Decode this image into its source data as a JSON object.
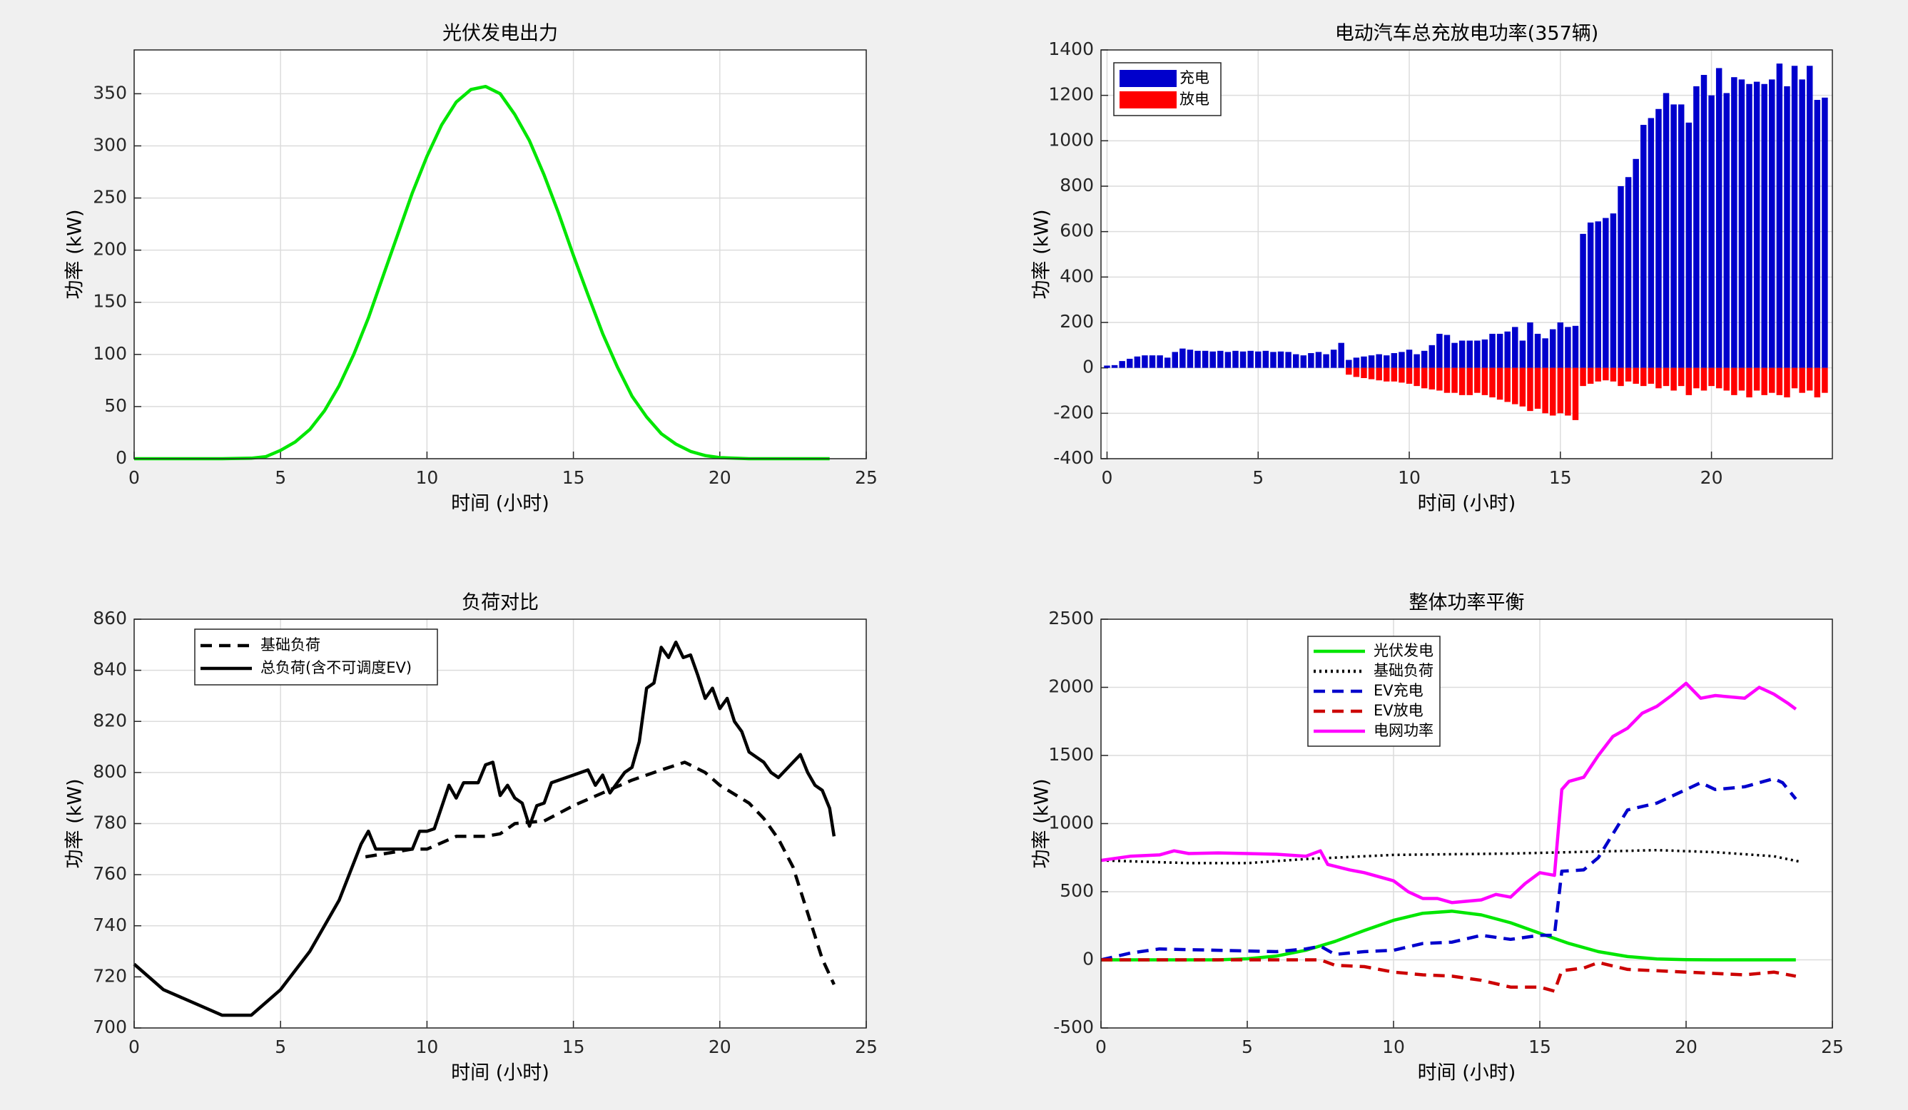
{
  "chart_data": [
    {
      "type": "line",
      "title": "光伏发电出力",
      "xlabel": "时间 (小时)",
      "ylabel": "功率 (kW)",
      "xlim": [
        0,
        25
      ],
      "xticks": [
        0,
        5,
        10,
        15,
        20,
        25
      ],
      "ylim": [
        0,
        392
      ],
      "yticks": [
        0,
        50,
        100,
        150,
        200,
        250,
        300,
        350
      ],
      "grid": true,
      "series": [
        {
          "color": "#00e600",
          "linestyle": "-",
          "x": [
            0,
            1,
            2,
            3,
            4,
            4.5,
            5,
            5.5,
            6,
            6.5,
            7,
            7.5,
            8,
            8.5,
            9,
            9.5,
            10,
            10.5,
            11,
            11.5,
            12,
            12.5,
            13,
            13.5,
            14,
            14.5,
            15,
            15.5,
            16,
            16.5,
            17,
            17.5,
            18,
            18.5,
            19,
            19.5,
            20,
            21,
            22,
            23,
            23.75
          ],
          "values": [
            0,
            0,
            0,
            0,
            0.5,
            2,
            8,
            16,
            28,
            46,
            70,
            100,
            135,
            175,
            215,
            255,
            290,
            320,
            342,
            354,
            357,
            350,
            330,
            305,
            272,
            235,
            195,
            157,
            120,
            88,
            60,
            40,
            24,
            14,
            7,
            3,
            1,
            0,
            0,
            0,
            0
          ]
        }
      ]
    },
    {
      "type": "bar",
      "title": "电动汽车总充放电功率(357辆)",
      "xlabel": "时间 (小时)",
      "ylabel": "功率 (kW)",
      "xlim": [
        -0.2,
        24
      ],
      "xticks": [
        0,
        5,
        10,
        15,
        20
      ],
      "ylim": [
        -400,
        1400
      ],
      "yticks": [
        -400,
        -200,
        0,
        200,
        400,
        600,
        800,
        1000,
        1200,
        1400
      ],
      "grid": true,
      "legend": "upper left",
      "x": [
        0,
        0.25,
        0.5,
        0.75,
        1,
        1.25,
        1.5,
        1.75,
        2,
        2.25,
        2.5,
        2.75,
        3,
        3.25,
        3.5,
        3.75,
        4,
        4.25,
        4.5,
        4.75,
        5,
        5.25,
        5.5,
        5.75,
        6,
        6.25,
        6.5,
        6.75,
        7,
        7.25,
        7.5,
        7.75,
        8,
        8.25,
        8.5,
        8.75,
        9,
        9.25,
        9.5,
        9.75,
        10,
        10.25,
        10.5,
        10.75,
        11,
        11.25,
        11.5,
        11.75,
        12,
        12.25,
        12.5,
        12.75,
        13,
        13.25,
        13.5,
        13.75,
        14,
        14.25,
        14.5,
        14.75,
        15,
        15.25,
        15.5,
        15.75,
        16,
        16.25,
        16.5,
        16.75,
        17,
        17.25,
        17.5,
        17.75,
        18,
        18.25,
        18.5,
        18.75,
        19,
        19.25,
        19.5,
        19.75,
        20,
        20.25,
        20.5,
        20.75,
        21,
        21.25,
        21.5,
        21.75,
        22,
        22.25,
        22.5,
        22.75,
        23,
        23.25,
        23.5,
        23.75
      ],
      "series": [
        {
          "name": "充电",
          "color": "#0000cc",
          "values": [
            10,
            12,
            30,
            40,
            50,
            55,
            55,
            55,
            45,
            70,
            85,
            80,
            75,
            75,
            72,
            75,
            70,
            75,
            72,
            75,
            72,
            75,
            70,
            72,
            70,
            60,
            55,
            65,
            70,
            60,
            80,
            110,
            35,
            45,
            50,
            55,
            60,
            55,
            65,
            70,
            80,
            60,
            75,
            100,
            150,
            145,
            110,
            120,
            120,
            120,
            125,
            150,
            150,
            160,
            180,
            120,
            200,
            150,
            130,
            170,
            200,
            180,
            185,
            590,
            640,
            645,
            660,
            680,
            800,
            840,
            920,
            1070,
            1100,
            1140,
            1210,
            1160,
            1160,
            1080,
            1240,
            1290,
            1200,
            1320,
            1210,
            1280,
            1270,
            1250,
            1260,
            1250,
            1270,
            1340,
            1240,
            1330,
            1270,
            1330,
            1180,
            1190
          ]
        },
        {
          "name": "放电",
          "color": "#ff0000",
          "values": [
            0,
            0,
            0,
            0,
            0,
            0,
            0,
            0,
            0,
            0,
            0,
            0,
            0,
            0,
            0,
            0,
            0,
            0,
            0,
            0,
            0,
            0,
            0,
            0,
            0,
            0,
            0,
            0,
            0,
            0,
            0,
            0,
            -30,
            -40,
            -45,
            -50,
            -55,
            -60,
            -60,
            -65,
            -70,
            -80,
            -90,
            -95,
            -100,
            -110,
            -110,
            -120,
            -120,
            -110,
            -120,
            -130,
            -140,
            -150,
            -160,
            -170,
            -190,
            -180,
            -200,
            -210,
            -200,
            -210,
            -230,
            -80,
            -70,
            -60,
            -55,
            -60,
            -80,
            -60,
            -70,
            -80,
            -70,
            -90,
            -80,
            -100,
            -80,
            -120,
            -90,
            -100,
            -80,
            -90,
            -100,
            -120,
            -100,
            -130,
            -100,
            -120,
            -110,
            -120,
            -130,
            -90,
            -110,
            -100,
            -130,
            -110
          ]
        }
      ]
    },
    {
      "type": "line",
      "title": "负荷对比",
      "xlabel": "时间 (小时)",
      "ylabel": "功率 (kW)",
      "xlim": [
        0,
        25
      ],
      "xticks": [
        0,
        5,
        10,
        15,
        20,
        25
      ],
      "ylim": [
        700,
        860
      ],
      "yticks": [
        700,
        720,
        740,
        760,
        780,
        800,
        820,
        840,
        860
      ],
      "grid": true,
      "legend": "upper left",
      "series": [
        {
          "name": "基础负荷",
          "color": "#000000",
          "linestyle": "--",
          "x": [
            7.9,
            9.5,
            10,
            11,
            12,
            12.5,
            13,
            14,
            15,
            16,
            17,
            18,
            18.8,
            19.5,
            20,
            21,
            21.5,
            22,
            22.5,
            23,
            23.5,
            23.9
          ],
          "values": [
            767,
            770,
            770,
            775,
            775,
            776,
            780,
            781,
            787,
            792,
            797,
            801,
            804,
            800,
            795,
            788,
            782,
            774,
            763,
            745,
            727,
            717
          ]
        },
        {
          "name": "总负荷(含不可调度EV)",
          "color": "#000000",
          "linestyle": "-",
          "x": [
            0,
            1,
            2,
            3,
            4,
            5,
            6,
            7,
            7.75,
            8,
            8.25,
            9,
            9.5,
            9.75,
            10,
            10.25,
            10.75,
            11,
            11.25,
            11.5,
            11.75,
            12,
            12.25,
            12.5,
            12.75,
            13,
            13.25,
            13.5,
            13.75,
            14,
            14.25,
            15,
            15.5,
            15.75,
            16,
            16.25,
            16.75,
            17,
            17.25,
            17.5,
            17.75,
            18,
            18.25,
            18.5,
            18.75,
            19,
            19.25,
            19.5,
            19.75,
            20,
            20.25,
            20.5,
            20.75,
            21,
            21.5,
            21.75,
            22,
            22.5,
            22.75,
            23,
            23.25,
            23.5,
            23.75,
            23.9
          ],
          "values": [
            725,
            715,
            710,
            705,
            705,
            715,
            730,
            750,
            772,
            777,
            770,
            770,
            770,
            777,
            777,
            778,
            795,
            790,
            796,
            796,
            796,
            803,
            804,
            791,
            795,
            790,
            788,
            779,
            787,
            788,
            796,
            799,
            801,
            795,
            799,
            792,
            800,
            802,
            812,
            833,
            835,
            849,
            845,
            851,
            845,
            846,
            838,
            829,
            833,
            825,
            829,
            820,
            816,
            808,
            804,
            800,
            798,
            804,
            807,
            800,
            795,
            793,
            786,
            775
          ]
        }
      ]
    },
    {
      "type": "line",
      "title": "整体功率平衡",
      "xlabel": "时间 (小时)",
      "ylabel": "功率 (kW)",
      "xlim": [
        0,
        25
      ],
      "xticks": [
        0,
        5,
        10,
        15,
        20,
        25
      ],
      "ylim": [
        -500,
        2500
      ],
      "yticks": [
        -500,
        0,
        500,
        1000,
        1500,
        2000,
        2500
      ],
      "grid": true,
      "legend": "upper left",
      "series": [
        {
          "name": "光伏发电",
          "color": "#00e600",
          "linestyle": "-",
          "x": [
            0,
            1,
            2,
            3,
            4,
            5,
            6,
            7,
            8,
            9,
            10,
            11,
            12,
            13,
            14,
            15,
            16,
            17,
            18,
            19,
            20,
            21,
            22,
            23,
            23.75
          ],
          "values": [
            0,
            0,
            0,
            0,
            0,
            8,
            28,
            70,
            135,
            215,
            290,
            342,
            357,
            330,
            272,
            195,
            120,
            60,
            24,
            7,
            1,
            0,
            0,
            0,
            0
          ]
        },
        {
          "name": "基础负荷",
          "color": "#000000",
          "linestyle": ":",
          "x": [
            0,
            3,
            5,
            7,
            10,
            14,
            18,
            19,
            21,
            23,
            23.9
          ],
          "values": [
            730,
            710,
            710,
            740,
            770,
            780,
            800,
            805,
            790,
            760,
            720
          ]
        },
        {
          "name": "EV充电",
          "color": "#0000cc",
          "linestyle": "--",
          "x": [
            0,
            1,
            2,
            3,
            4,
            5,
            6,
            7,
            7.5,
            8,
            9,
            10,
            11,
            12,
            13,
            14,
            15,
            15.5,
            15.75,
            16.5,
            17,
            18,
            19,
            20,
            20.5,
            21,
            22,
            23,
            23.3,
            23.75
          ],
          "values": [
            0,
            50,
            80,
            75,
            70,
            65,
            60,
            80,
            100,
            40,
            60,
            70,
            120,
            130,
            180,
            150,
            180,
            180,
            650,
            660,
            750,
            1100,
            1150,
            1250,
            1300,
            1250,
            1270,
            1330,
            1300,
            1180
          ]
        },
        {
          "name": "EV放电",
          "color": "#cc0000",
          "linestyle": "--",
          "x": [
            0,
            7.5,
            8,
            9,
            10,
            11,
            12,
            13,
            14,
            15,
            15.5,
            15.75,
            16.5,
            17,
            18,
            19,
            20,
            21,
            22,
            23,
            23.75
          ],
          "values": [
            0,
            0,
            -40,
            -50,
            -90,
            -110,
            -120,
            -150,
            -200,
            -200,
            -230,
            -80,
            -60,
            -20,
            -70,
            -80,
            -90,
            -100,
            -110,
            -90,
            -120
          ]
        },
        {
          "name": "电网功率",
          "color": "#ff00ff",
          "linestyle": "-",
          "x": [
            0,
            1,
            2,
            2.5,
            3,
            4,
            5,
            6,
            7,
            7.5,
            7.75,
            8.5,
            9,
            10,
            10.5,
            11,
            11.5,
            12,
            12.5,
            13,
            13.5,
            14,
            14.5,
            15,
            15.5,
            15.75,
            16,
            16.5,
            17,
            17.5,
            18,
            18.5,
            19,
            19.5,
            20,
            20.5,
            21,
            22,
            22.5,
            23,
            23.5,
            23.75
          ],
          "values": [
            730,
            760,
            770,
            800,
            780,
            785,
            780,
            775,
            760,
            800,
            700,
            660,
            640,
            580,
            500,
            450,
            450,
            420,
            430,
            440,
            480,
            460,
            560,
            640,
            620,
            1250,
            1310,
            1340,
            1500,
            1640,
            1700,
            1810,
            1860,
            1940,
            2030,
            1920,
            1940,
            1920,
            2000,
            1950,
            1880,
            1840
          ]
        }
      ]
    }
  ]
}
